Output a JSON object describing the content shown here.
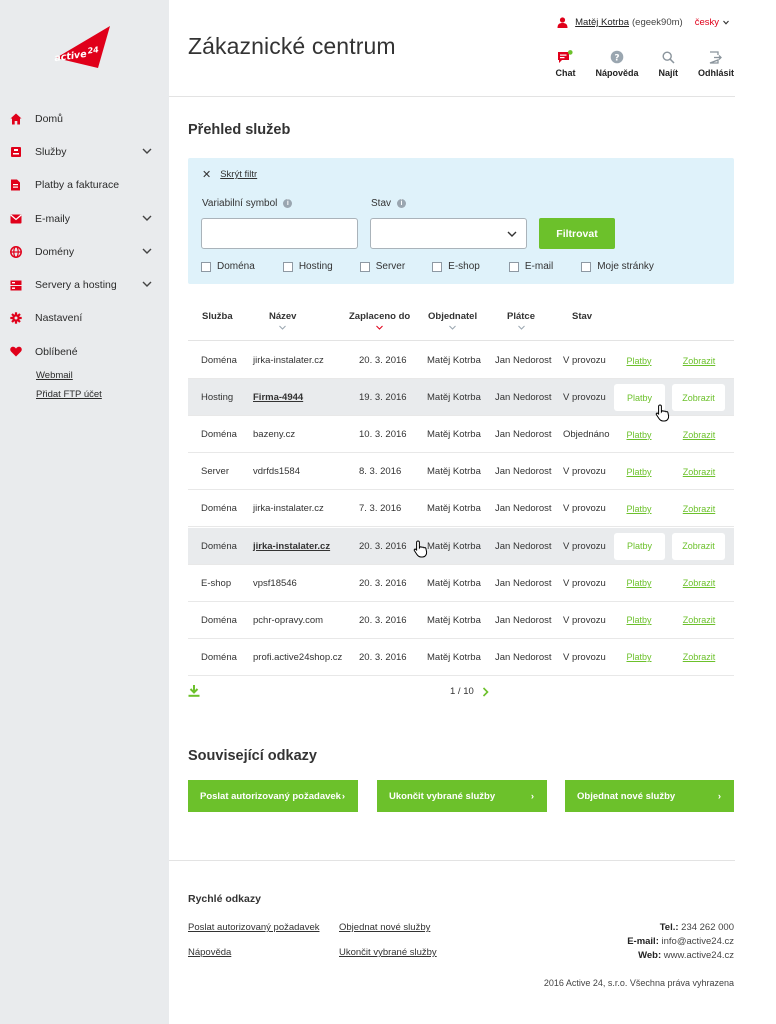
{
  "brand": {
    "logo_text": "active 24",
    "accent": "#e0001a",
    "green": "#6cc12b"
  },
  "sidebar": {
    "items": [
      {
        "label": "Domů",
        "icon": "home-icon",
        "expandable": false
      },
      {
        "label": "Služby",
        "icon": "services-icon",
        "expandable": true
      },
      {
        "label": "Platby a fakturace",
        "icon": "invoice-icon",
        "expandable": false
      },
      {
        "label": "E-maily",
        "icon": "mail-icon",
        "expandable": true
      },
      {
        "label": "Domény",
        "icon": "globe-icon",
        "expandable": true
      },
      {
        "label": "Servery a hosting",
        "icon": "server-icon",
        "expandable": true
      },
      {
        "label": "Nastavení",
        "icon": "gear-icon",
        "expandable": false
      },
      {
        "label": "Oblíbené",
        "icon": "heart-icon",
        "expandable": false
      }
    ],
    "favorites": [
      "Webmail",
      "Přidat FTP účet"
    ]
  },
  "header": {
    "title": "Zákaznické centrum",
    "user_name": "Matěj Kotrba",
    "user_id": "(egeek90m)",
    "language": "česky",
    "tools": [
      {
        "label": "Chat",
        "icon": "chat-icon"
      },
      {
        "label": "Nápověda",
        "icon": "help-icon"
      },
      {
        "label": "Najít",
        "icon": "search-icon"
      },
      {
        "label": "Odhlásit",
        "icon": "logout-icon"
      }
    ]
  },
  "overview": {
    "title": "Přehled služeb",
    "filter": {
      "hide_label": "Skrýt filtr",
      "variable_symbol_label": "Variabilní symbol",
      "variable_symbol_value": "",
      "status_label": "Stav",
      "status_value": "",
      "submit_label": "Filtrovat",
      "checkboxes": [
        "Doména",
        "Hosting",
        "Server",
        "E-shop",
        "E-mail",
        "Moje stránky"
      ]
    },
    "columns": [
      "Služba",
      "Název",
      "Zaplaceno do",
      "Objednatel",
      "Plátce",
      "Stav"
    ],
    "rows": [
      {
        "service": "Doména",
        "name": "jirka-instalater.cz",
        "paid_until": "20. 3. 2016",
        "orderer": "Matěj Kotrba",
        "payer": "Jan Nedorost",
        "status": "V provozu",
        "highlighted": false
      },
      {
        "service": "Hosting",
        "name": "Firma-4944",
        "paid_until": "19. 3. 2016",
        "orderer": "Matěj Kotrba",
        "payer": "Jan Nedorost",
        "status": "V provozu",
        "highlighted": true
      },
      {
        "service": "Doména",
        "name": "bazeny.cz",
        "paid_until": "10. 3. 2016",
        "orderer": "Matěj Kotrba",
        "payer": "Jan Nedorost",
        "status": "Objednáno",
        "highlighted": false
      },
      {
        "service": "Server",
        "name": "vdrfds1584",
        "paid_until": "8. 3. 2016",
        "orderer": "Matěj Kotrba",
        "payer": "Jan Nedorost",
        "status": "V provozu",
        "highlighted": false
      },
      {
        "service": "Doména",
        "name": "jirka-instalater.cz",
        "paid_until": "7. 3. 2016",
        "orderer": "Matěj Kotrba",
        "payer": "Jan Nedorost",
        "status": "V provozu",
        "highlighted": false
      },
      {
        "service": "Doména",
        "name": "jirka-instalater.cz",
        "paid_until": "20. 3. 2016",
        "orderer": "Matěj Kotrba",
        "payer": "Jan Nedorost",
        "status": "V provozu",
        "highlighted": true
      },
      {
        "service": "E-shop",
        "name": "vpsf18546",
        "paid_until": "20. 3. 2016",
        "orderer": "Matěj Kotrba",
        "payer": "Jan Nedorost",
        "status": "V provozu",
        "highlighted": false
      },
      {
        "service": "Doména",
        "name": "pchr-opravy.com",
        "paid_until": "20. 3. 2016",
        "orderer": "Matěj Kotrba",
        "payer": "Jan Nedorost",
        "status": "V provozu",
        "highlighted": false
      },
      {
        "service": "Doména",
        "name": "profi.active24shop.cz",
        "paid_until": "20. 3. 2016",
        "orderer": "Matěj Kotrba",
        "payer": "Jan Nedorost",
        "status": "V provozu",
        "highlighted": false
      }
    ],
    "row_actions": {
      "payments": "Platby",
      "show": "Zobrazit"
    },
    "pagination": "1 / 10"
  },
  "related": {
    "title": "Související odkazy",
    "buttons": [
      "Poslat autorizovaný požadavek",
      "Ukončit vybrané služby",
      "Objednat nové služby"
    ]
  },
  "footer": {
    "quick_title": "Rychlé odkazy",
    "links": [
      "Poslat autorizovaný požadavek",
      "Objednat nové služby",
      "Nápověda",
      "Ukončit vybrané služby"
    ],
    "phone_label": "Tel.:",
    "phone": "234 262 000",
    "email_label": "E-mail:",
    "email": "info@active24.cz",
    "web_label": "Web:",
    "web": "www.active24.cz",
    "copyright": "2016 Active 24, s.r.o. Všechna práva vyhrazena"
  }
}
